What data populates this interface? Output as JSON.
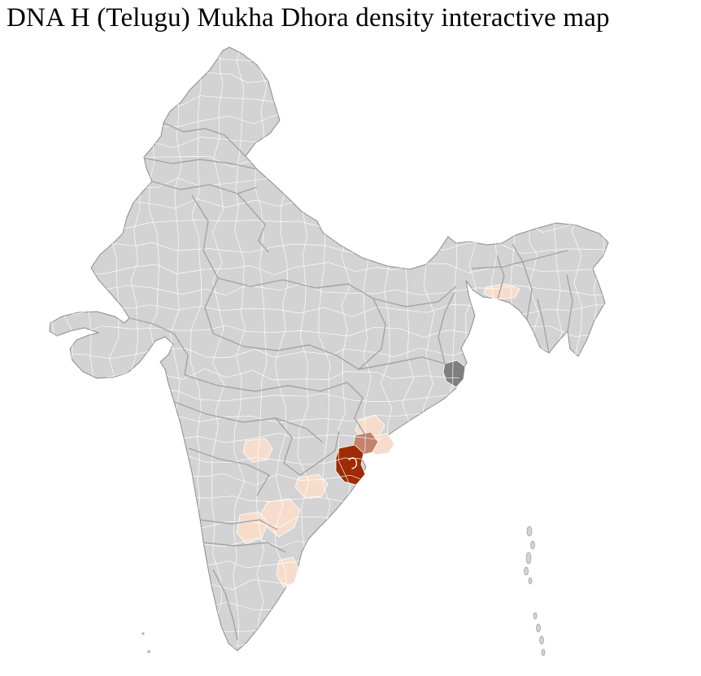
{
  "page": {
    "title": "DNA H (Telugu) Mukha Dhora density interactive map"
  },
  "map": {
    "region": "India district choropleth",
    "type": "district-choropleth",
    "colors": {
      "background": "#ffffff",
      "land": "#d3d3d3",
      "district_border": "#ffffff",
      "state_border": "#9b9b9b",
      "outline": "#8c8c8c",
      "density_high": "#9e2b02",
      "density_medium": "#c4836a",
      "density_low": "#f6ddcb",
      "no_data": "#7f7f7f"
    },
    "districts": {
      "high": [
        {
          "id": "district-high-1",
          "intensity": "high"
        }
      ],
      "medium": [
        {
          "id": "district-medium-1",
          "intensity": "medium"
        }
      ],
      "low": [
        {
          "id": "district-low-1",
          "intensity": "low"
        },
        {
          "id": "district-low-2",
          "intensity": "low"
        },
        {
          "id": "district-low-3",
          "intensity": "low"
        },
        {
          "id": "district-low-4",
          "intensity": "low"
        },
        {
          "id": "district-low-5",
          "intensity": "low"
        },
        {
          "id": "district-low-6",
          "intensity": "low"
        },
        {
          "id": "district-low-7",
          "intensity": "low"
        },
        {
          "id": "district-low-8",
          "intensity": "low"
        }
      ],
      "missing": [
        {
          "id": "district-missing-1",
          "intensity": "missing"
        }
      ]
    }
  }
}
